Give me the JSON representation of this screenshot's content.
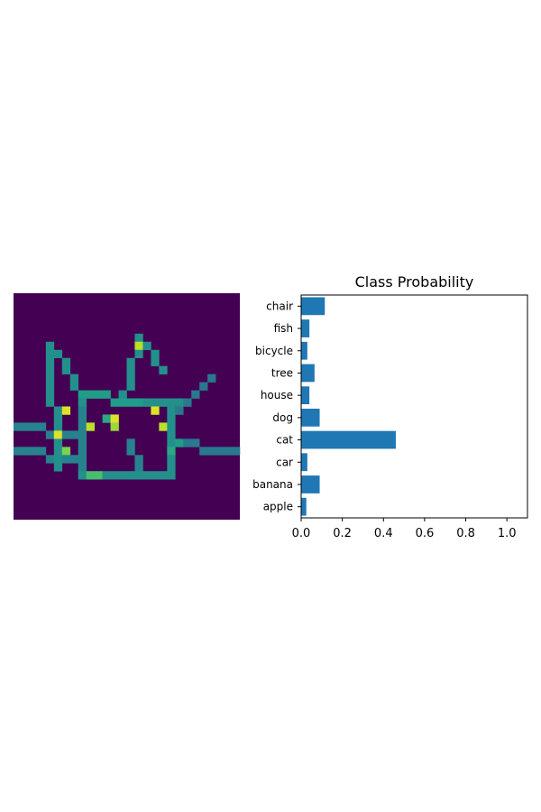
{
  "image_panel": {
    "colormap": "viridis",
    "grid_rows": 28,
    "grid_cols": 28,
    "axes_visible": false
  },
  "chart_data": {
    "type": "bar",
    "orientation": "horizontal",
    "title": "Class Probability",
    "xlabel": "",
    "ylabel": "",
    "categories": [
      "apple",
      "banana",
      "car",
      "cat",
      "dog",
      "house",
      "tree",
      "bicycle",
      "fish",
      "chair"
    ],
    "values": [
      0.025,
      0.09,
      0.03,
      0.46,
      0.09,
      0.04,
      0.065,
      0.03,
      0.04,
      0.115
    ],
    "xlim": [
      0,
      1.1
    ],
    "xticks": [
      0.0,
      0.2,
      0.4,
      0.6,
      0.8,
      1.0
    ],
    "xtick_labels": [
      "0.0",
      "0.2",
      "0.4",
      "0.6",
      "0.8",
      "1.0"
    ],
    "bar_color": "#1f77b4",
    "grid": false
  }
}
